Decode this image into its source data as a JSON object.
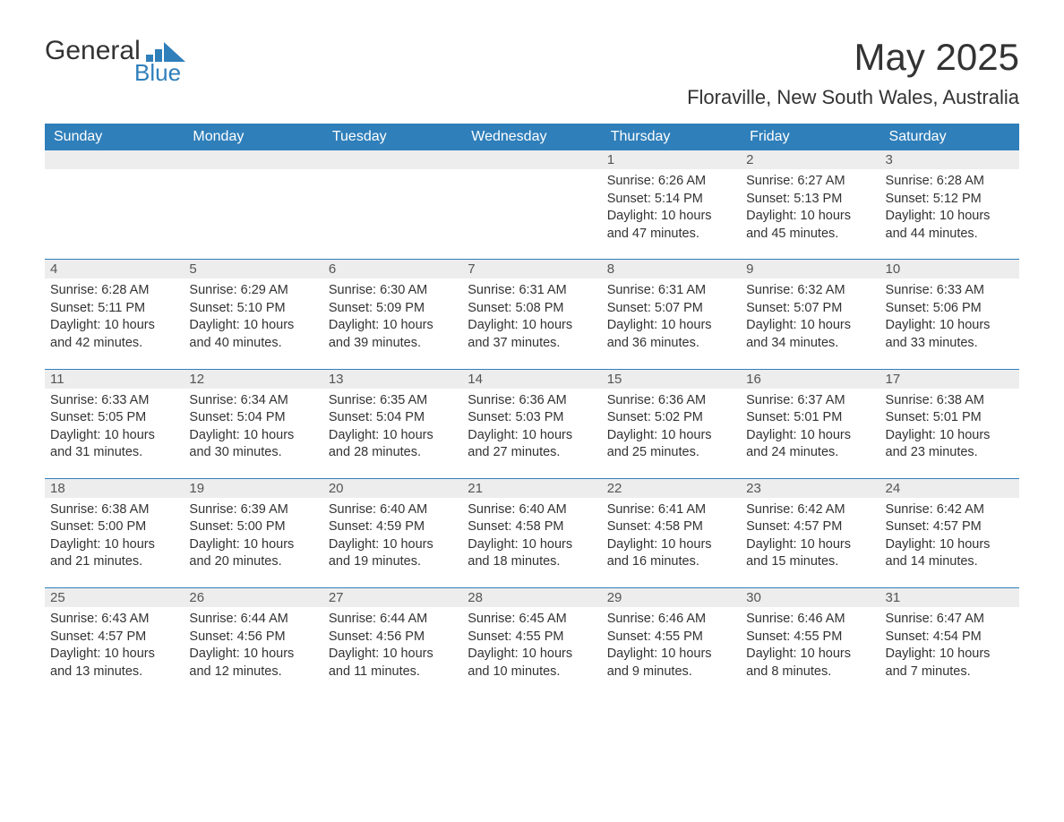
{
  "logo": {
    "general": "General",
    "blue": "Blue",
    "brand_color": "#2f7fba"
  },
  "title": "May 2025",
  "location": "Floraville, New South Wales, Australia",
  "colors": {
    "header_bg": "#2f7fba",
    "header_text": "#ffffff",
    "daynum_bg": "#ededed",
    "body_text": "#333333",
    "page_bg": "#ffffff"
  },
  "weekdays": [
    "Sunday",
    "Monday",
    "Tuesday",
    "Wednesday",
    "Thursday",
    "Friday",
    "Saturday"
  ],
  "weeks": [
    [
      {
        "n": "",
        "sr": "",
        "ss": "",
        "dl": ""
      },
      {
        "n": "",
        "sr": "",
        "ss": "",
        "dl": ""
      },
      {
        "n": "",
        "sr": "",
        "ss": "",
        "dl": ""
      },
      {
        "n": "",
        "sr": "",
        "ss": "",
        "dl": ""
      },
      {
        "n": "1",
        "sr": "Sunrise: 6:26 AM",
        "ss": "Sunset: 5:14 PM",
        "dl": "Daylight: 10 hours and 47 minutes."
      },
      {
        "n": "2",
        "sr": "Sunrise: 6:27 AM",
        "ss": "Sunset: 5:13 PM",
        "dl": "Daylight: 10 hours and 45 minutes."
      },
      {
        "n": "3",
        "sr": "Sunrise: 6:28 AM",
        "ss": "Sunset: 5:12 PM",
        "dl": "Daylight: 10 hours and 44 minutes."
      }
    ],
    [
      {
        "n": "4",
        "sr": "Sunrise: 6:28 AM",
        "ss": "Sunset: 5:11 PM",
        "dl": "Daylight: 10 hours and 42 minutes."
      },
      {
        "n": "5",
        "sr": "Sunrise: 6:29 AM",
        "ss": "Sunset: 5:10 PM",
        "dl": "Daylight: 10 hours and 40 minutes."
      },
      {
        "n": "6",
        "sr": "Sunrise: 6:30 AM",
        "ss": "Sunset: 5:09 PM",
        "dl": "Daylight: 10 hours and 39 minutes."
      },
      {
        "n": "7",
        "sr": "Sunrise: 6:31 AM",
        "ss": "Sunset: 5:08 PM",
        "dl": "Daylight: 10 hours and 37 minutes."
      },
      {
        "n": "8",
        "sr": "Sunrise: 6:31 AM",
        "ss": "Sunset: 5:07 PM",
        "dl": "Daylight: 10 hours and 36 minutes."
      },
      {
        "n": "9",
        "sr": "Sunrise: 6:32 AM",
        "ss": "Sunset: 5:07 PM",
        "dl": "Daylight: 10 hours and 34 minutes."
      },
      {
        "n": "10",
        "sr": "Sunrise: 6:33 AM",
        "ss": "Sunset: 5:06 PM",
        "dl": "Daylight: 10 hours and 33 minutes."
      }
    ],
    [
      {
        "n": "11",
        "sr": "Sunrise: 6:33 AM",
        "ss": "Sunset: 5:05 PM",
        "dl": "Daylight: 10 hours and 31 minutes."
      },
      {
        "n": "12",
        "sr": "Sunrise: 6:34 AM",
        "ss": "Sunset: 5:04 PM",
        "dl": "Daylight: 10 hours and 30 minutes."
      },
      {
        "n": "13",
        "sr": "Sunrise: 6:35 AM",
        "ss": "Sunset: 5:04 PM",
        "dl": "Daylight: 10 hours and 28 minutes."
      },
      {
        "n": "14",
        "sr": "Sunrise: 6:36 AM",
        "ss": "Sunset: 5:03 PM",
        "dl": "Daylight: 10 hours and 27 minutes."
      },
      {
        "n": "15",
        "sr": "Sunrise: 6:36 AM",
        "ss": "Sunset: 5:02 PM",
        "dl": "Daylight: 10 hours and 25 minutes."
      },
      {
        "n": "16",
        "sr": "Sunrise: 6:37 AM",
        "ss": "Sunset: 5:01 PM",
        "dl": "Daylight: 10 hours and 24 minutes."
      },
      {
        "n": "17",
        "sr": "Sunrise: 6:38 AM",
        "ss": "Sunset: 5:01 PM",
        "dl": "Daylight: 10 hours and 23 minutes."
      }
    ],
    [
      {
        "n": "18",
        "sr": "Sunrise: 6:38 AM",
        "ss": "Sunset: 5:00 PM",
        "dl": "Daylight: 10 hours and 21 minutes."
      },
      {
        "n": "19",
        "sr": "Sunrise: 6:39 AM",
        "ss": "Sunset: 5:00 PM",
        "dl": "Daylight: 10 hours and 20 minutes."
      },
      {
        "n": "20",
        "sr": "Sunrise: 6:40 AM",
        "ss": "Sunset: 4:59 PM",
        "dl": "Daylight: 10 hours and 19 minutes."
      },
      {
        "n": "21",
        "sr": "Sunrise: 6:40 AM",
        "ss": "Sunset: 4:58 PM",
        "dl": "Daylight: 10 hours and 18 minutes."
      },
      {
        "n": "22",
        "sr": "Sunrise: 6:41 AM",
        "ss": "Sunset: 4:58 PM",
        "dl": "Daylight: 10 hours and 16 minutes."
      },
      {
        "n": "23",
        "sr": "Sunrise: 6:42 AM",
        "ss": "Sunset: 4:57 PM",
        "dl": "Daylight: 10 hours and 15 minutes."
      },
      {
        "n": "24",
        "sr": "Sunrise: 6:42 AM",
        "ss": "Sunset: 4:57 PM",
        "dl": "Daylight: 10 hours and 14 minutes."
      }
    ],
    [
      {
        "n": "25",
        "sr": "Sunrise: 6:43 AM",
        "ss": "Sunset: 4:57 PM",
        "dl": "Daylight: 10 hours and 13 minutes."
      },
      {
        "n": "26",
        "sr": "Sunrise: 6:44 AM",
        "ss": "Sunset: 4:56 PM",
        "dl": "Daylight: 10 hours and 12 minutes."
      },
      {
        "n": "27",
        "sr": "Sunrise: 6:44 AM",
        "ss": "Sunset: 4:56 PM",
        "dl": "Daylight: 10 hours and 11 minutes."
      },
      {
        "n": "28",
        "sr": "Sunrise: 6:45 AM",
        "ss": "Sunset: 4:55 PM",
        "dl": "Daylight: 10 hours and 10 minutes."
      },
      {
        "n": "29",
        "sr": "Sunrise: 6:46 AM",
        "ss": "Sunset: 4:55 PM",
        "dl": "Daylight: 10 hours and 9 minutes."
      },
      {
        "n": "30",
        "sr": "Sunrise: 6:46 AM",
        "ss": "Sunset: 4:55 PM",
        "dl": "Daylight: 10 hours and 8 minutes."
      },
      {
        "n": "31",
        "sr": "Sunrise: 6:47 AM",
        "ss": "Sunset: 4:54 PM",
        "dl": "Daylight: 10 hours and 7 minutes."
      }
    ]
  ]
}
